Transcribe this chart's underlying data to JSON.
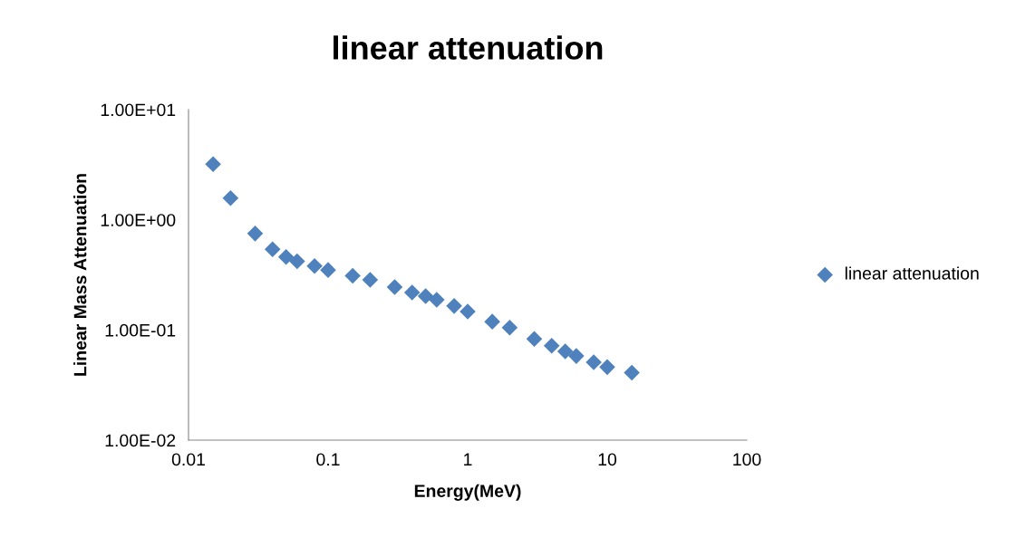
{
  "chart_data": {
    "type": "scatter",
    "title": "linear attenuation",
    "xlabel": "Energy(MeV)",
    "ylabel": "Linear Mass Attenuation",
    "log": "xy",
    "grid": false,
    "legend": "right",
    "marker": "diamond",
    "xlim": [
      0.01,
      100
    ],
    "xticks": [
      0.01,
      0.1,
      1,
      10,
      100
    ],
    "ylim": [
      0.01,
      10
    ],
    "yticks": [
      {
        "value": 10,
        "label": "1.00E+01"
      },
      {
        "value": 1,
        "label": "1.00E+00"
      },
      {
        "value": 0.1,
        "label": "1.00E-01"
      },
      {
        "value": 0.01,
        "label": "1.00E-02"
      }
    ],
    "series": [
      {
        "name": "linear attenuation",
        "color": "#4f81bd",
        "x": [
          0.015,
          0.02,
          0.03,
          0.04,
          0.05,
          0.06,
          0.08,
          0.1,
          0.15,
          0.2,
          0.3,
          0.4,
          0.5,
          0.6,
          0.8,
          1,
          1.5,
          2,
          3,
          4,
          5,
          6,
          8,
          10,
          15
        ],
        "values": [
          3.2,
          1.57,
          0.75,
          0.54,
          0.46,
          0.42,
          0.38,
          0.35,
          0.31,
          0.285,
          0.245,
          0.219,
          0.203,
          0.188,
          0.165,
          0.147,
          0.119,
          0.105,
          0.083,
          0.072,
          0.064,
          0.058,
          0.051,
          0.046,
          0.041
        ]
      }
    ]
  }
}
